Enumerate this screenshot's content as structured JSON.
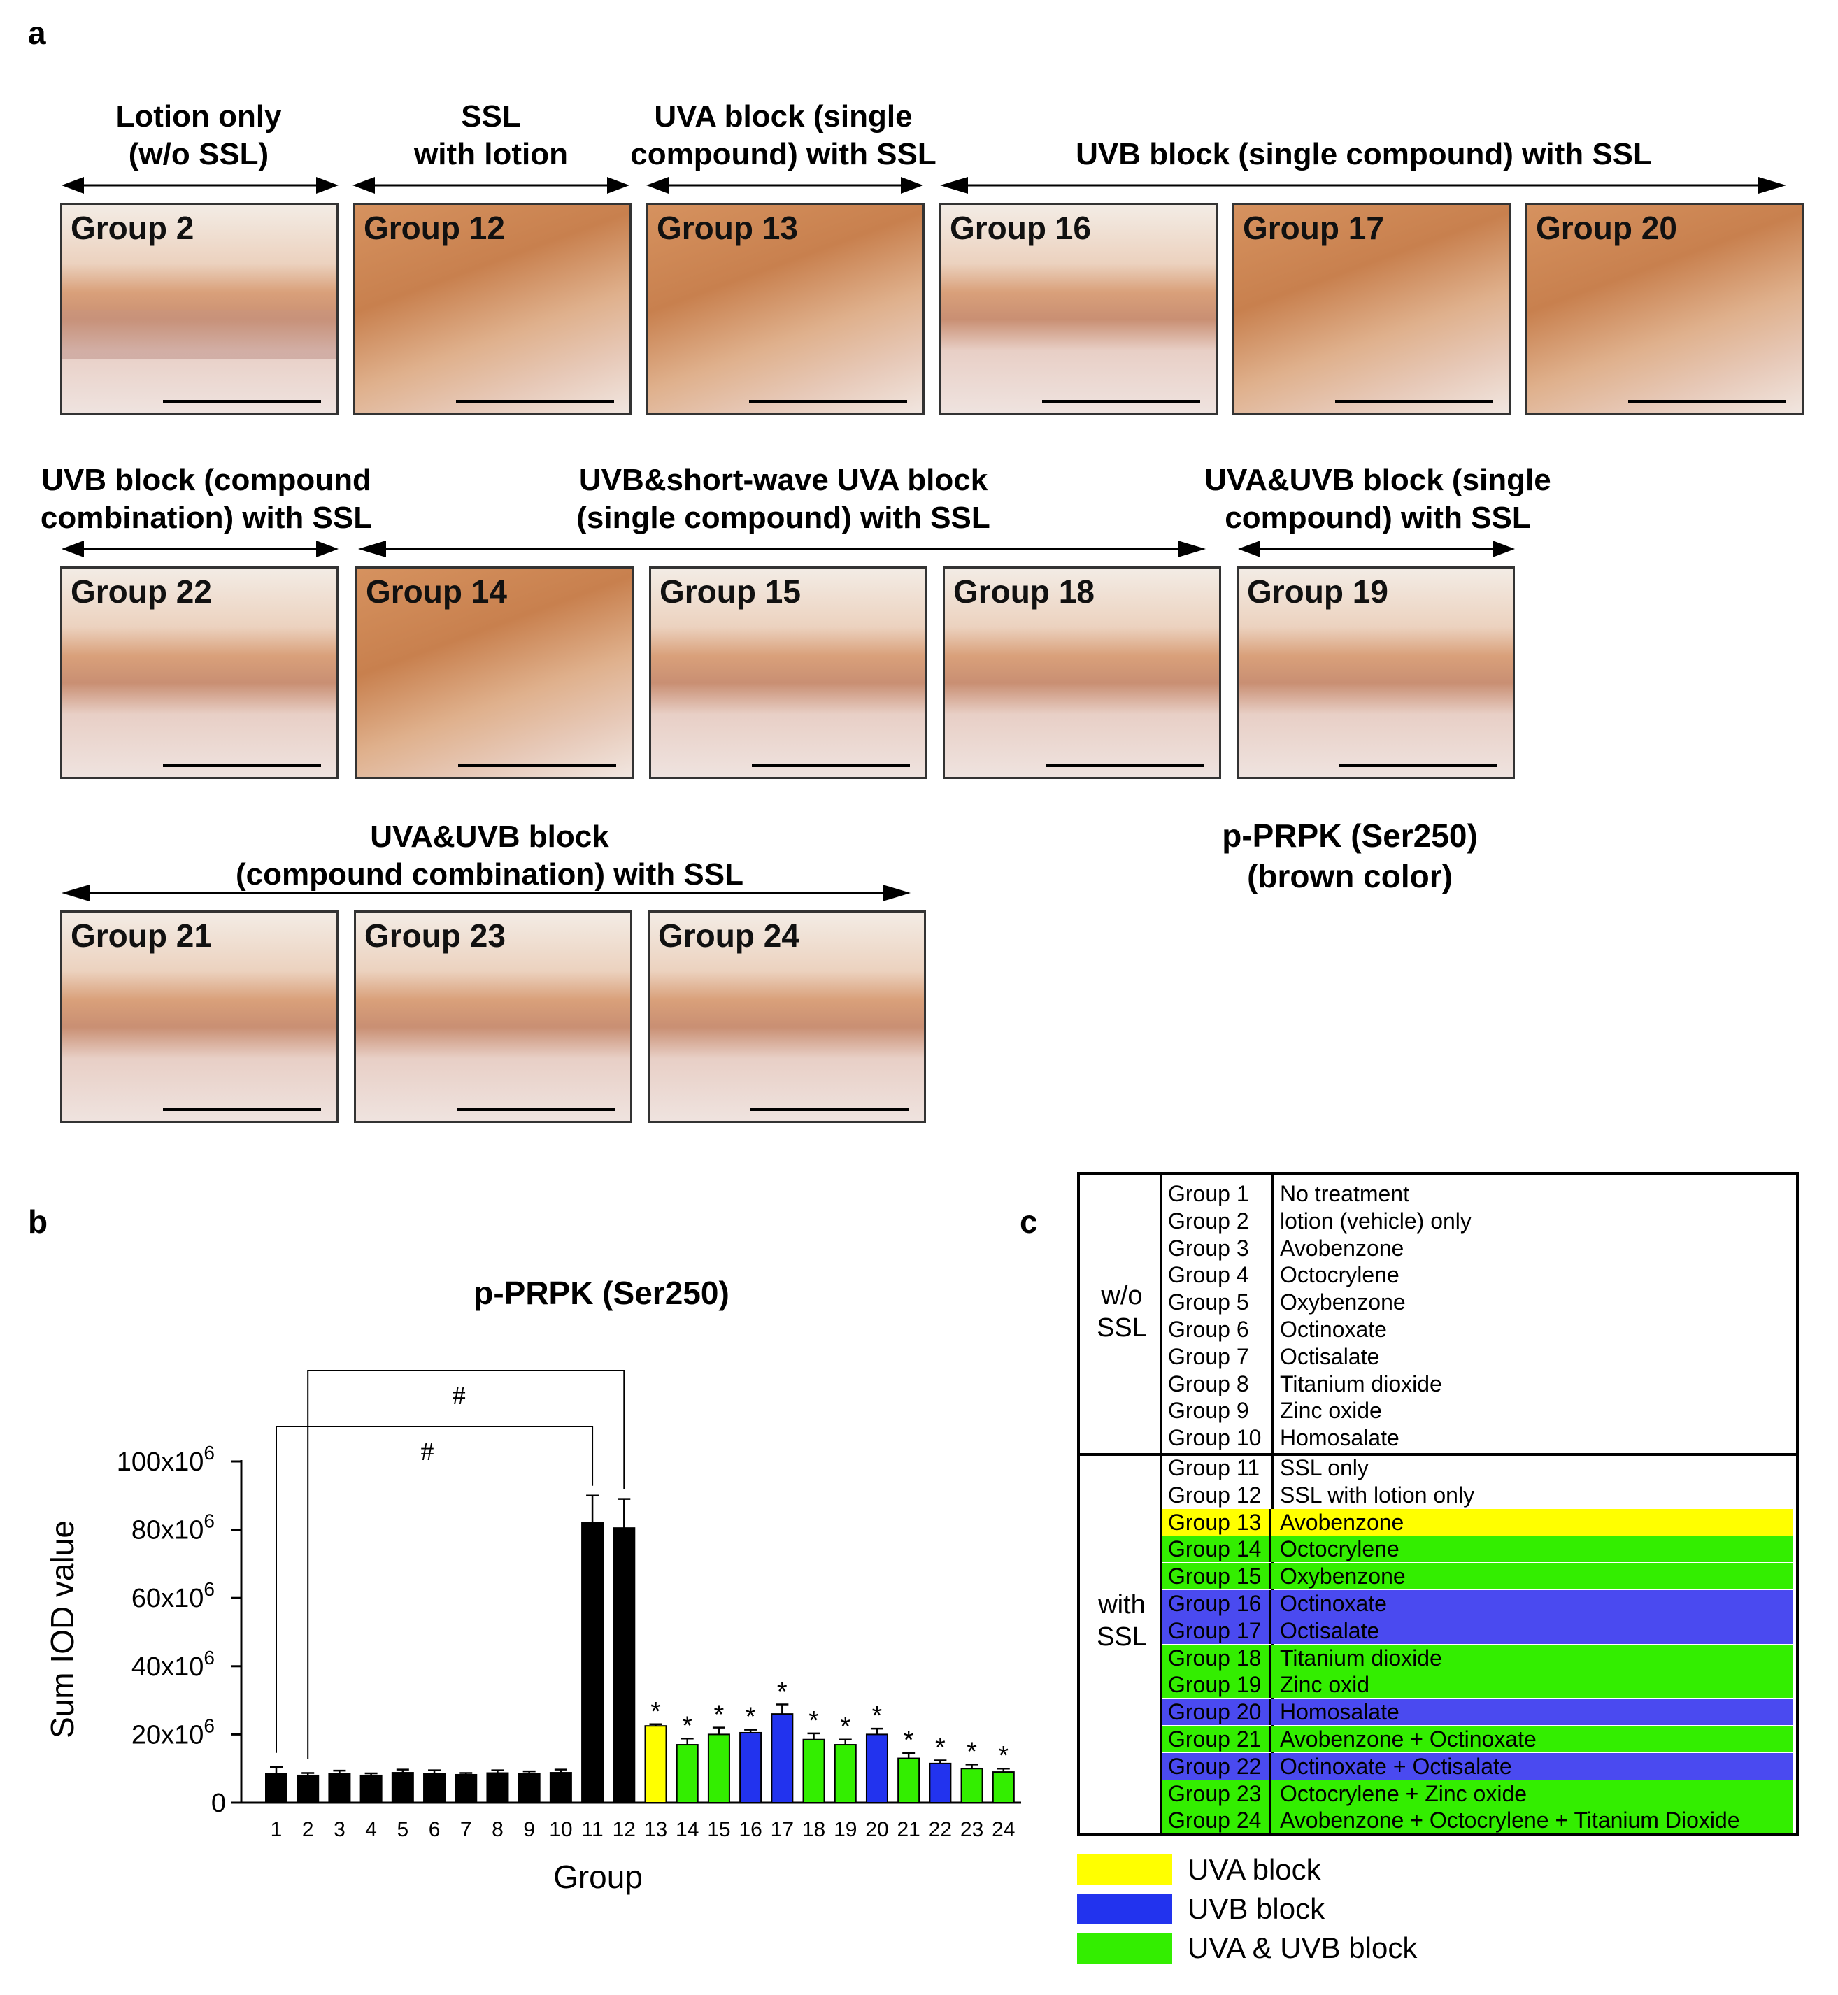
{
  "panel_letters": {
    "a": "a",
    "b": "b",
    "c": "c"
  },
  "panel_a": {
    "row1": {
      "labels": [
        {
          "text": "Lotion only\n(w/o SSL)"
        },
        {
          "text": "SSL\nwith lotion"
        },
        {
          "text": "UVA block (single\ncompound) with SSL"
        },
        {
          "text": "UVB block (single compound) with SSL"
        }
      ],
      "images": [
        "Group 2",
        "Group 12",
        "Group 13",
        "Group 16",
        "Group 17",
        "Group 20"
      ]
    },
    "row2": {
      "labels": [
        {
          "text": "UVB block (compound\ncombination) with SSL"
        },
        {
          "text": "UVB&short-wave UVA block\n(single compound) with SSL"
        },
        {
          "text": "UVA&UVB block (single\ncompound) with SSL"
        }
      ],
      "images": [
        "Group 22",
        "Group 14",
        "Group 15",
        "Group 18",
        "Group 19"
      ]
    },
    "row3": {
      "labels": [
        {
          "text": "UVA&UVB block\n(compound combination) with SSL"
        }
      ],
      "images": [
        "Group 21",
        "Group 23",
        "Group 24"
      ]
    },
    "stain_note": "p-PRPK (Ser250)\n(brown color)"
  },
  "chart_data": {
    "type": "bar",
    "title": "p-PRPK (Ser250)",
    "xlabel": "Group",
    "ylabel": "Sum IOD value",
    "ylim": [
      0,
      100000000
    ],
    "yticks": [
      {
        "value": 0,
        "label": "0",
        "exp": ""
      },
      {
        "value": 20000000,
        "label": "20x10",
        "exp": "6"
      },
      {
        "value": 40000000,
        "label": "40x10",
        "exp": "6"
      },
      {
        "value": 60000000,
        "label": "60x10",
        "exp": "6"
      },
      {
        "value": 80000000,
        "label": "80x10",
        "exp": "6"
      },
      {
        "value": 100000000,
        "label": "100x10",
        "exp": "6"
      }
    ],
    "categories": [
      "1",
      "2",
      "3",
      "4",
      "5",
      "6",
      "7",
      "8",
      "9",
      "10",
      "11",
      "12",
      "13",
      "14",
      "15",
      "16",
      "17",
      "18",
      "19",
      "20",
      "21",
      "22",
      "23",
      "24"
    ],
    "values": [
      8500000,
      8000000,
      8500000,
      8000000,
      8800000,
      8600000,
      8200000,
      8700000,
      8500000,
      8800000,
      82000000,
      80500000,
      22500000,
      17000000,
      20000000,
      20500000,
      26000000,
      18500000,
      17000000,
      20000000,
      13000000,
      11500000,
      10000000,
      9000000
    ],
    "errors": [
      2000000,
      700000,
      900000,
      600000,
      900000,
      900000,
      500000,
      800000,
      700000,
      900000,
      8000000,
      8500000,
      500000,
      1800000,
      2000000,
      900000,
      2800000,
      1800000,
      1500000,
      1700000,
      1500000,
      900000,
      1200000,
      1000000
    ],
    "colors": [
      "#000000",
      "#000000",
      "#000000",
      "#000000",
      "#000000",
      "#000000",
      "#000000",
      "#000000",
      "#000000",
      "#000000",
      "#000000",
      "#000000",
      "#ffff00",
      "#33ee00",
      "#33ee00",
      "#2233ee",
      "#2233ee",
      "#33ee00",
      "#33ee00",
      "#2233ee",
      "#33ee00",
      "#2233ee",
      "#33ee00",
      "#33ee00"
    ],
    "significance": [
      "",
      "",
      "",
      "",
      "",
      "",
      "",
      "",
      "",
      "",
      "",
      "",
      "*",
      "*",
      "*",
      "*",
      "*",
      "*",
      "*",
      "*",
      "*",
      "*",
      "*",
      "*"
    ],
    "brackets": [
      {
        "from": "2",
        "to": "12",
        "label": "#"
      },
      {
        "from": "1",
        "to": "11",
        "label": "#"
      }
    ],
    "grid": false,
    "legend": "none"
  },
  "panel_c": {
    "sections": [
      {
        "label": "w/o\nSSL",
        "rows": [
          {
            "group": "Group 1",
            "treatment": "No treatment",
            "color": ""
          },
          {
            "group": "Group 2",
            "treatment": "lotion (vehicle) only",
            "color": ""
          },
          {
            "group": "Group 3",
            "treatment": "Avobenzone",
            "color": ""
          },
          {
            "group": "Group 4",
            "treatment": "Octocrylene",
            "color": ""
          },
          {
            "group": "Group 5",
            "treatment": "Oxybenzone",
            "color": ""
          },
          {
            "group": "Group 6",
            "treatment": "Octinoxate",
            "color": ""
          },
          {
            "group": "Group 7",
            "treatment": "Octisalate",
            "color": ""
          },
          {
            "group": "Group 8",
            "treatment": "Titanium dioxide",
            "color": ""
          },
          {
            "group": "Group 9",
            "treatment": "Zinc oxide",
            "color": ""
          },
          {
            "group": "Group 10",
            "treatment": "Homosalate",
            "color": ""
          }
        ]
      },
      {
        "label": "with\nSSL",
        "rows": [
          {
            "group": "Group 11",
            "treatment": "SSL only",
            "color": ""
          },
          {
            "group": "Group 12",
            "treatment": "SSL with lotion only",
            "color": ""
          },
          {
            "group": "Group 13",
            "treatment": "Avobenzone",
            "color": "#ffff00"
          },
          {
            "group": "Group 14",
            "treatment": "Octocrylene",
            "color": "#33ee00"
          },
          {
            "group": "Group 15",
            "treatment": "Oxybenzone",
            "color": "#33ee00"
          },
          {
            "group": "Group 16",
            "treatment": "Octinoxate",
            "color": "#4a4af0"
          },
          {
            "group": "Group 17",
            "treatment": "Octisalate",
            "color": "#4a4af0"
          },
          {
            "group": "Group 18",
            "treatment": "Titanium dioxide",
            "color": "#33ee00"
          },
          {
            "group": "Group 19",
            "treatment": "Zinc oxid",
            "color": "#33ee00"
          },
          {
            "group": "Group 20",
            "treatment": "Homosalate",
            "color": "#4a4af0"
          },
          {
            "group": "Group 21",
            "treatment": "Avobenzone + Octinoxate",
            "color": "#33ee00"
          },
          {
            "group": "Group 22",
            "treatment": "Octinoxate + Octisalate",
            "color": "#4a4af0"
          },
          {
            "group": "Group 23",
            "treatment": "Octocrylene + Zinc oxide",
            "color": "#33ee00"
          },
          {
            "group": "Group 24",
            "treatment": "Avobenzone + Octocrylene + Titanium Dioxide",
            "color": "#33ee00"
          }
        ]
      }
    ],
    "legend": [
      {
        "label": "UVA block",
        "color": "#ffff00"
      },
      {
        "label": "UVB block",
        "color": "#2233ee"
      },
      {
        "label": "UVA & UVB block",
        "color": "#33ee00"
      }
    ]
  }
}
